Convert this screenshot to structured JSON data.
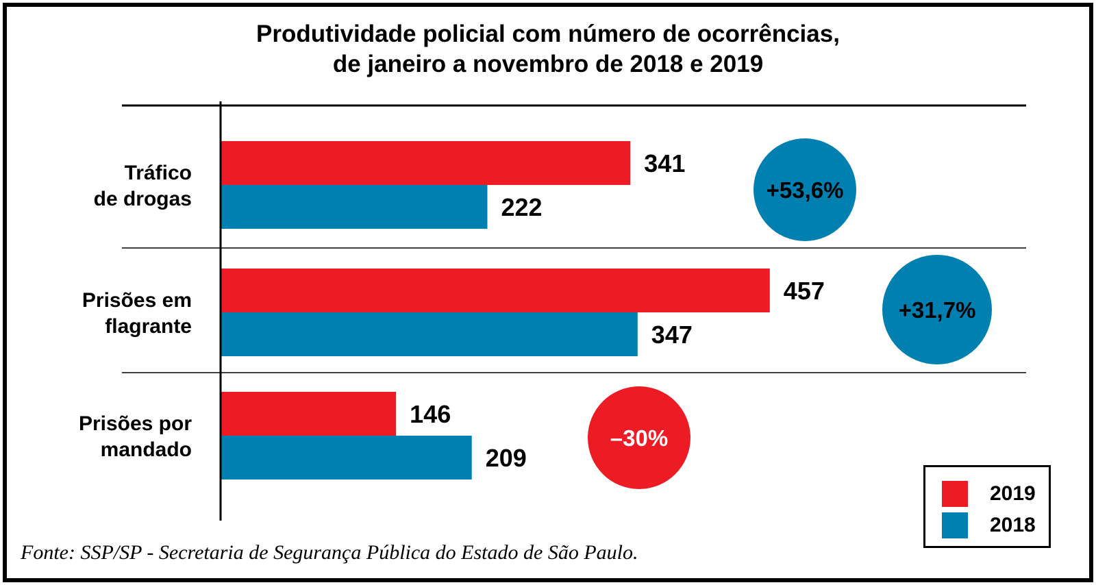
{
  "chart_data": {
    "type": "bar",
    "orientation": "horizontal",
    "title": [
      "Produtividade policial com número de ocorrências,",
      "de janeiro a novembro de 2018 e 2019"
    ],
    "categories": [
      [
        "Tráfico",
        "de drogas"
      ],
      [
        "Prisões em",
        "flagrante"
      ],
      [
        "Prisões por",
        "mandado"
      ]
    ],
    "series": [
      {
        "name": "2019",
        "color": "#ED1C24",
        "values": [
          341,
          457,
          146
        ]
      },
      {
        "name": "2018",
        "color": "#0080B0",
        "values": [
          222,
          347,
          209
        ]
      }
    ],
    "changes": [
      {
        "label": "+53,6%",
        "color": "#0080B0",
        "text_color": "#000000"
      },
      {
        "label": "+31,7%",
        "color": "#0080B0",
        "text_color": "#000000"
      },
      {
        "label": "–30%",
        "color": "#ED1C24",
        "text_color": "#ffffff"
      }
    ],
    "xlim": [
      0,
      500
    ],
    "legend": {
      "position": "bottom-right",
      "items": [
        "2019",
        "2018"
      ]
    },
    "source": "Fonte: SSP/SP - Secretaria de Segurança Pública do Estado de São Paulo."
  }
}
